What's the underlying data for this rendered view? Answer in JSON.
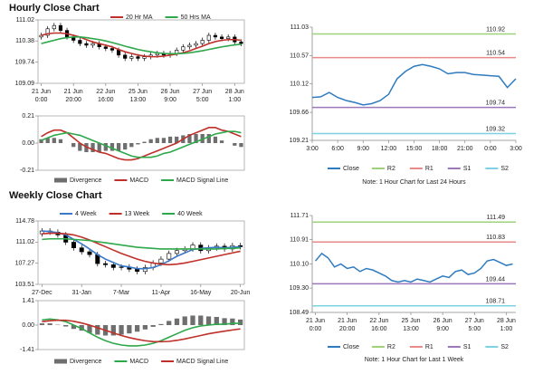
{
  "headers": [
    "Hourly Close Chart",
    "Weekly Close Chart"
  ],
  "chart_data": [
    {
      "type": "candlestick",
      "xlim": [
        -0.5,
        31.5
      ],
      "ylim": [
        109.09,
        111.02
      ],
      "yticks": [
        111.02,
        110.38,
        109.74,
        109.09
      ],
      "xticks": [
        {
          "value": 0,
          "label": [
            "21 Jun",
            "0:00"
          ]
        },
        {
          "value": 5,
          "label": [
            "21 Jun",
            "20:00"
          ]
        },
        {
          "value": 10,
          "label": [
            "22 Jun",
            "16:00"
          ]
        },
        {
          "value": 15,
          "label": [
            "25 Jun",
            "13:00"
          ]
        },
        {
          "value": 20,
          "label": [
            "26 Jun",
            "9:00"
          ]
        },
        {
          "value": 25,
          "label": [
            "27 Jun",
            "5:00"
          ]
        },
        {
          "value": 30,
          "label": [
            "28 Jun",
            "1:00"
          ]
        }
      ],
      "candle_colors": {
        "up": "#ffffff",
        "down": "#000000"
      },
      "open": [
        110.5,
        110.55,
        110.75,
        110.85,
        110.7,
        110.5,
        110.4,
        110.3,
        110.25,
        110.3,
        110.2,
        110.15,
        110.1,
        109.95,
        109.85,
        109.9,
        109.85,
        109.9,
        109.95,
        110.0,
        109.95,
        110.0,
        110.1,
        110.2,
        110.25,
        110.3,
        110.4,
        110.55,
        110.5,
        110.45,
        110.5,
        110.35
      ],
      "high": [
        110.63,
        110.83,
        110.93,
        110.93,
        110.78,
        110.58,
        110.48,
        110.38,
        110.38,
        110.38,
        110.28,
        110.23,
        110.18,
        110.03,
        109.98,
        109.98,
        109.98,
        110.03,
        110.08,
        110.08,
        110.08,
        110.18,
        110.28,
        110.33,
        110.38,
        110.48,
        110.63,
        110.63,
        110.58,
        110.58,
        110.58,
        110.43
      ],
      "low": [
        110.42,
        110.47,
        110.67,
        110.62,
        110.42,
        110.32,
        110.22,
        110.17,
        110.17,
        110.12,
        110.07,
        110.02,
        109.87,
        109.77,
        109.77,
        109.77,
        109.77,
        109.82,
        109.87,
        109.87,
        109.87,
        109.92,
        110.02,
        110.12,
        110.17,
        110.22,
        110.32,
        110.42,
        110.37,
        110.37,
        110.27,
        110.22
      ],
      "close": [
        110.55,
        110.75,
        110.85,
        110.7,
        110.5,
        110.4,
        110.3,
        110.25,
        110.3,
        110.2,
        110.15,
        110.1,
        109.95,
        109.85,
        109.9,
        109.85,
        109.9,
        109.95,
        110.0,
        109.95,
        110.0,
        110.1,
        110.2,
        110.25,
        110.3,
        110.4,
        110.55,
        110.5,
        110.45,
        110.5,
        110.35,
        110.3
      ],
      "series": [
        {
          "name": "20 Hr MA",
          "color": "#c0302a",
          "values": [
            110.55,
            110.6,
            110.62,
            110.62,
            110.6,
            110.55,
            110.5,
            110.42,
            110.35,
            110.3,
            110.25,
            110.2,
            110.12,
            110.05,
            110.0,
            109.95,
            109.92,
            109.9,
            109.9,
            109.92,
            109.95,
            109.98,
            110.02,
            110.08,
            110.15,
            110.22,
            110.3,
            110.36,
            110.4,
            110.42,
            110.42,
            110.4
          ]
        },
        {
          "name": "50 Hrs MA",
          "color": "#2ea84a",
          "values": [
            110.3,
            110.35,
            110.4,
            110.45,
            110.48,
            110.5,
            110.5,
            110.48,
            110.45,
            110.42,
            110.38,
            110.33,
            110.28,
            110.22,
            110.17,
            110.12,
            110.08,
            110.05,
            110.02,
            110.0,
            109.99,
            109.99,
            110.0,
            110.02,
            110.05,
            110.08,
            110.12,
            110.16,
            110.2,
            110.23,
            110.26,
            110.28
          ]
        }
      ],
      "legend": "top"
    },
    {
      "type": "macd",
      "xlim": [
        -0.5,
        31.5
      ],
      "ylim": [
        -0.21,
        0.21
      ],
      "yticks": [
        0.21,
        {
          "value": 0,
          "label": "0.00"
        },
        -0.21
      ],
      "series": [
        {
          "name": "Divergence",
          "type": "bar",
          "color": "#6e6e6e",
          "values": [
            0.03,
            0.04,
            0.04,
            0.03,
            0.0,
            -0.03,
            -0.06,
            -0.07,
            -0.07,
            -0.07,
            -0.06,
            -0.06,
            -0.06,
            -0.05,
            -0.03,
            -0.01,
            0.01,
            0.03,
            0.04,
            0.04,
            0.05,
            0.05,
            0.06,
            0.07,
            0.07,
            0.07,
            0.07,
            0.05,
            0.02,
            0.0,
            -0.02,
            -0.03
          ]
        },
        {
          "name": "MACD",
          "color": "#c0302a",
          "values": [
            0.05,
            0.08,
            0.1,
            0.1,
            0.08,
            0.04,
            0.0,
            -0.03,
            -0.05,
            -0.07,
            -0.08,
            -0.1,
            -0.12,
            -0.13,
            -0.13,
            -0.12,
            -0.1,
            -0.08,
            -0.06,
            -0.04,
            -0.02,
            0.0,
            0.03,
            0.06,
            0.08,
            0.1,
            0.12,
            0.12,
            0.1,
            0.09,
            0.07,
            0.05
          ]
        },
        {
          "name": "MACD Signal Line",
          "color": "#2ea84a",
          "values": [
            0.02,
            0.04,
            0.06,
            0.07,
            0.08,
            0.07,
            0.06,
            0.04,
            0.02,
            0.0,
            -0.02,
            -0.04,
            -0.06,
            -0.08,
            -0.1,
            -0.11,
            -0.11,
            -0.11,
            -0.1,
            -0.08,
            -0.07,
            -0.05,
            -0.03,
            -0.01,
            0.01,
            0.03,
            0.05,
            0.07,
            0.08,
            0.09,
            0.09,
            0.08
          ]
        }
      ],
      "legend": "bottom"
    },
    {
      "type": "line",
      "xlim": [
        0,
        24
      ],
      "ylim": [
        109.21,
        111.03
      ],
      "yticks": [
        111.03,
        110.57,
        110.12,
        109.66,
        109.21
      ],
      "xticks": [
        {
          "value": 0,
          "label": "3:00"
        },
        {
          "value": 3,
          "label": "6:00"
        },
        {
          "value": 6,
          "label": "9:00"
        },
        {
          "value": 9,
          "label": "12:00"
        },
        {
          "value": 12,
          "label": "15:00"
        },
        {
          "value": 15,
          "label": "18:00"
        },
        {
          "value": 18,
          "label": "21:00"
        },
        {
          "value": 21,
          "label": "0:00"
        },
        {
          "value": 24,
          "label": "3:00"
        }
      ],
      "series": [
        {
          "name": "Close",
          "color": "#2f7bbf",
          "values": [
            109.9,
            109.91,
            109.98,
            109.9,
            109.85,
            109.82,
            109.78,
            109.8,
            109.85,
            109.95,
            110.2,
            110.32,
            110.4,
            110.43,
            110.4,
            110.36,
            110.28,
            110.3,
            110.3,
            110.27,
            110.26,
            110.25,
            110.24,
            110.06,
            110.2
          ]
        }
      ],
      "levels": [
        {
          "name": "R2",
          "color": "#9fd07a",
          "value": 110.92
        },
        {
          "name": "R1",
          "color": "#e8898a",
          "value": 110.54
        },
        {
          "name": "S1",
          "color": "#9d78b8",
          "value": 109.74
        },
        {
          "name": "S2",
          "color": "#7fd0e0",
          "value": 109.32
        }
      ],
      "note": "Note: 1 Hour Chart for Last 24 Hours",
      "legend": "bottom"
    },
    {
      "type": "candlestick",
      "xlim": [
        -0.5,
        25.5
      ],
      "ylim": [
        103.51,
        114.78
      ],
      "yticks": [
        114.78,
        111.02,
        107.27,
        103.51
      ],
      "xticks": [
        {
          "value": 0,
          "label": "27-Dec"
        },
        {
          "value": 5,
          "label": "31-Jan"
        },
        {
          "value": 10,
          "label": "7-Mar"
        },
        {
          "value": 15,
          "label": "11-Apr"
        },
        {
          "value": 20,
          "label": "16-May"
        },
        {
          "value": 25,
          "label": "20-Jun"
        }
      ],
      "candle_colors": {
        "up": "#ffffff",
        "down": "#000000"
      },
      "open": [
        112.5,
        113.0,
        112.8,
        112.3,
        111.0,
        110.0,
        109.3,
        108.8,
        107.2,
        107.0,
        106.5,
        106.6,
        106.2,
        105.8,
        106.5,
        107.3,
        108.0,
        109.0,
        109.5,
        109.8,
        110.5,
        109.5,
        110.0,
        110.3,
        109.8,
        110.4
      ],
      "high": [
        113.5,
        113.5,
        113.3,
        112.8,
        111.5,
        110.5,
        109.8,
        109.3,
        107.7,
        107.5,
        107.1,
        107.1,
        106.7,
        107.0,
        107.8,
        108.5,
        109.5,
        110.0,
        110.3,
        111.0,
        111.0,
        110.5,
        110.8,
        110.8,
        110.9,
        110.9
      ],
      "low": [
        112.0,
        112.3,
        111.8,
        110.5,
        109.5,
        108.8,
        108.3,
        106.7,
        106.5,
        106.0,
        106.0,
        105.7,
        105.3,
        105.3,
        106.0,
        106.8,
        107.5,
        108.5,
        109.0,
        109.3,
        109.0,
        109.0,
        109.5,
        109.3,
        109.3,
        109.7
      ],
      "close": [
        113.0,
        112.8,
        112.3,
        111.0,
        110.0,
        109.3,
        108.8,
        107.2,
        107.0,
        106.5,
        106.6,
        106.2,
        105.8,
        106.5,
        107.3,
        108.0,
        109.0,
        109.5,
        109.8,
        110.5,
        109.5,
        110.0,
        110.3,
        109.8,
        110.4,
        110.2
      ],
      "series": [
        {
          "name": "4 Week",
          "color": "#3a78c8",
          "values": [
            113.0,
            112.9,
            112.7,
            112.3,
            111.5,
            110.7,
            109.8,
            108.8,
            108.0,
            107.4,
            106.8,
            106.6,
            106.3,
            106.3,
            106.5,
            107.0,
            107.7,
            108.5,
            109.1,
            109.7,
            109.9,
            110.0,
            110.1,
            110.0,
            110.1,
            110.2
          ]
        },
        {
          "name": "13 Week",
          "color": "#c0302a",
          "values": [
            112.5,
            112.6,
            112.6,
            112.5,
            112.3,
            111.9,
            111.4,
            110.8,
            110.2,
            109.6,
            109.0,
            108.5,
            108.0,
            107.6,
            107.3,
            107.1,
            107.0,
            107.1,
            107.3,
            107.6,
            107.9,
            108.2,
            108.5,
            108.8,
            109.1,
            109.4
          ]
        },
        {
          "name": "40 Week",
          "color": "#2ea84a",
          "values": [
            111.5,
            111.6,
            111.6,
            111.6,
            111.5,
            111.4,
            111.3,
            111.1,
            110.9,
            110.7,
            110.5,
            110.3,
            110.1,
            110.0,
            109.9,
            109.8,
            109.8,
            109.8,
            109.8,
            109.8,
            109.8,
            109.8,
            109.8,
            109.9,
            109.9,
            110.0
          ]
        }
      ],
      "legend": "top"
    },
    {
      "type": "macd",
      "xlim": [
        -0.5,
        25.5
      ],
      "ylim": [
        -1.41,
        1.41
      ],
      "yticks": [
        1.41,
        {
          "value": 0,
          "label": "0.00"
        },
        -1.41
      ],
      "series": [
        {
          "name": "Divergence",
          "type": "bar",
          "color": "#6e6e6e",
          "values": [
            0.1,
            0.1,
            0.02,
            -0.08,
            -0.22,
            -0.32,
            -0.45,
            -0.55,
            -0.6,
            -0.6,
            -0.55,
            -0.48,
            -0.38,
            -0.25,
            -0.1,
            0.06,
            0.24,
            0.38,
            0.5,
            0.55,
            0.55,
            0.5,
            0.47,
            0.4,
            0.38,
            0.32
          ]
        },
        {
          "name": "MACD",
          "color": "#2ea84a",
          "values": [
            0.3,
            0.35,
            0.3,
            0.2,
            0.0,
            -0.2,
            -0.45,
            -0.7,
            -0.9,
            -1.05,
            -1.15,
            -1.2,
            -1.2,
            -1.15,
            -1.05,
            -0.9,
            -0.7,
            -0.5,
            -0.3,
            -0.15,
            -0.05,
            0.0,
            0.05,
            0.05,
            0.1,
            0.1
          ]
        },
        {
          "name": "MACD Signal Line",
          "color": "#c0302a",
          "values": [
            0.2,
            0.25,
            0.28,
            0.28,
            0.22,
            0.12,
            0.0,
            -0.15,
            -0.3,
            -0.45,
            -0.6,
            -0.72,
            -0.82,
            -0.9,
            -0.95,
            -0.96,
            -0.94,
            -0.88,
            -0.8,
            -0.7,
            -0.6,
            -0.5,
            -0.42,
            -0.35,
            -0.28,
            -0.22
          ]
        }
      ],
      "legend": "bottom"
    },
    {
      "type": "line",
      "xlim": [
        -0.5,
        31.5
      ],
      "ylim": [
        108.49,
        111.71
      ],
      "yticks": [
        111.71,
        110.91,
        {
          "value": 110.1,
          "label": "110.10"
        },
        {
          "value": 109.3,
          "label": "109.30"
        },
        108.49
      ],
      "xticks": [
        {
          "value": 0,
          "label": [
            "21 Jun",
            "0:00"
          ]
        },
        {
          "value": 5,
          "label": [
            "21 Jun",
            "20:00"
          ]
        },
        {
          "value": 10,
          "label": [
            "22 Jun",
            "16:00"
          ]
        },
        {
          "value": 15,
          "label": [
            "25 Jun",
            "13:00"
          ]
        },
        {
          "value": 20,
          "label": [
            "26 Jun",
            "9:00"
          ]
        },
        {
          "value": 25,
          "label": [
            "27 Jun",
            "5:00"
          ]
        },
        {
          "value": 30,
          "label": [
            "28 Jun",
            "1:00"
          ]
        }
      ],
      "series": [
        {
          "name": "Close",
          "color": "#2f7bbf",
          "values": [
            110.2,
            110.45,
            110.3,
            110.0,
            110.1,
            109.95,
            110.0,
            109.85,
            109.95,
            109.9,
            109.8,
            109.7,
            109.55,
            109.5,
            109.55,
            109.5,
            109.6,
            109.55,
            109.5,
            109.6,
            109.7,
            109.65,
            109.85,
            109.9,
            109.75,
            109.8,
            109.95,
            110.2,
            110.25,
            110.15,
            110.05,
            110.1
          ]
        }
      ],
      "levels": [
        {
          "name": "R2",
          "color": "#9fd07a",
          "value": 111.49
        },
        {
          "name": "R1",
          "color": "#e8898a",
          "value": 110.83
        },
        {
          "name": "S1",
          "color": "#9d78b8",
          "value": 109.44
        },
        {
          "name": "S2",
          "color": "#7fd0e0",
          "value": 108.71
        }
      ],
      "note": "Note: 1 Hour Chart for Last 1 Week",
      "legend": "bottom"
    }
  ]
}
